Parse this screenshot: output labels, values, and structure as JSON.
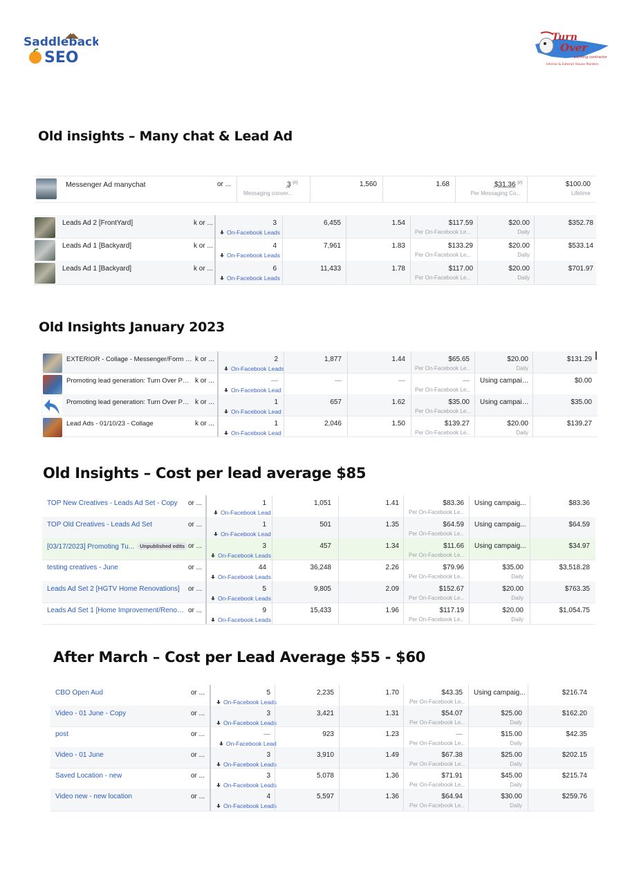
{
  "logos": {
    "left": {
      "line1": "Saddleback",
      "line2": "SEO"
    },
    "right": {
      "line1": "Turn",
      "line2": "Over",
      "line3": "painting contractor",
      "tagline": "Interior & Exterior House Painters"
    }
  },
  "headings": {
    "h1": "Old insights – Many chat & Lead Ad",
    "h2": "Old Insights January 2023",
    "h3": "Old Insights – Cost per lead average $85",
    "h4": "After March – Cost per Lead Average $55 - $60"
  },
  "table1": {
    "messenger": {
      "name": "Messenger Ad manychat",
      "delivery": "or ...",
      "results": "3",
      "results_note": "[2]",
      "results_sub": "Messaging conver...",
      "reach": "1,560",
      "frequency": "1.68",
      "cost": "$31.36",
      "cost_note": "[2]",
      "cost_sub": "Per Messaging Co...",
      "budget": "$100.00",
      "budget_sub": "Lifetime"
    },
    "rows": [
      {
        "name": "Leads Ad 2 [FrontYard]",
        "delivery": "k or ...",
        "results": "3",
        "result_type": "On-Facebook Leads",
        "reach": "6,455",
        "frequency": "1.54",
        "cost": "$117.59",
        "cost_sub": "Per On-Facebook Le...",
        "budget": "$20.00",
        "budget_sub": "Daily",
        "spent": "$352.78"
      },
      {
        "name": "Leads Ad 1 [Backyard]",
        "delivery": "k or ...",
        "results": "4",
        "result_type": "On-Facebook Leads",
        "reach": "7,961",
        "frequency": "1.83",
        "cost": "$133.29",
        "cost_sub": "Per On-Facebook Le...",
        "budget": "$20.00",
        "budget_sub": "Daily",
        "spent": "$533.14"
      },
      {
        "name": "Leads Ad 1 [Backyard]",
        "delivery": "k or ...",
        "results": "6",
        "result_type": "On-Facebook Leads",
        "reach": "11,433",
        "frequency": "1.78",
        "cost": "$117.00",
        "cost_sub": "Per On-Facebook Le...",
        "budget": "$20.00",
        "budget_sub": "Daily",
        "spent": "$701.97"
      }
    ]
  },
  "table2": {
    "rows": [
      {
        "name": "EXTERIOR - Collage - Messenger/Form - 01/...",
        "delivery": "k or ...",
        "results": "2",
        "result_type": "On-Facebook Leads",
        "reach": "1,877",
        "frequency": "1.44",
        "cost": "$65.65",
        "cost_sub": "Per On-Facebook Le...",
        "budget": "$20.00",
        "budget_sub": "Daily",
        "spent": "$131.29"
      },
      {
        "name": "Promoting lead generation: Turn Over Painti...",
        "delivery": "k or ...",
        "results": "—",
        "result_type": "On-Facebook Lead",
        "reach": "—",
        "frequency": "—",
        "cost": "—",
        "cost_sub": "Per On-Facebook Le...",
        "budget": "Using campaig...",
        "budget_sub": "",
        "spent": "$0.00"
      },
      {
        "name": "Promoting lead generation: Turn Over Painti...",
        "delivery": "k or ...",
        "results": "1",
        "result_type": "On-Facebook Lead",
        "reach": "657",
        "frequency": "1.62",
        "cost": "$35.00",
        "cost_sub": "Per On-Facebook Le...",
        "budget": "Using campaig...",
        "budget_sub": "",
        "spent": "$35.00"
      },
      {
        "name": "Lead Ads - 01/10/23 - Collage",
        "delivery": "k or ...",
        "results": "1",
        "result_type": "On-Facebook Lead",
        "reach": "2,046",
        "frequency": "1.50",
        "cost": "$139.27",
        "cost_sub": "Per On-Facebook Le...",
        "budget": "$20.00",
        "budget_sub": "Daily",
        "spent": "$139.27"
      }
    ]
  },
  "table3": {
    "rows": [
      {
        "name": "TOP New Creatives - Leads Ad Set - Copy",
        "badge": "",
        "delivery": "or ...",
        "results": "1",
        "result_type": "On-Facebook Lead",
        "reach": "1,051",
        "frequency": "1.41",
        "cost": "$83.36",
        "cost_sub": "Per On-Facebook Le...",
        "budget": "Using campaig...",
        "budget_sub": "",
        "spent": "$83.36"
      },
      {
        "name": "TOP Old Creatives - Leads Ad Set",
        "badge": "",
        "delivery": "or ...",
        "results": "1",
        "result_type": "On-Facebook Lead",
        "reach": "501",
        "frequency": "1.35",
        "cost": "$64.59",
        "cost_sub": "Per On-Facebook Le...",
        "budget": "Using campaig...",
        "budget_sub": "",
        "spent": "$64.59"
      },
      {
        "name": "[03/17/2023] Promoting Tu...",
        "badge": "Unpublished edits",
        "delivery": "or ...",
        "results": "3",
        "result_type": "On-Facebook Leads",
        "reach": "457",
        "frequency": "1.34",
        "cost": "$11.66",
        "cost_sub": "Per On-Facebook Le...",
        "budget": "Using campaig...",
        "budget_sub": "",
        "spent": "$34.97"
      },
      {
        "name": "testing creatives - June",
        "badge": "",
        "delivery": "or ...",
        "results": "44",
        "result_type": "On-Facebook Leads",
        "reach": "36,248",
        "frequency": "2.26",
        "cost": "$79.96",
        "cost_sub": "Per On-Facebook Le...",
        "budget": "$35.00",
        "budget_sub": "Daily",
        "spent": "$3,518.28"
      },
      {
        "name": "Leads Ad Set 2 [HGTV Home Renovations]",
        "badge": "",
        "delivery": "or ...",
        "results": "5",
        "result_type": "On-Facebook Leads",
        "reach": "9,805",
        "frequency": "2.09",
        "cost": "$152.67",
        "cost_sub": "Per On-Facebook Le...",
        "budget": "$20.00",
        "budget_sub": "Daily",
        "spent": "$763.35"
      },
      {
        "name": "Leads Ad Set 1 [Home Improvement/Renovat...",
        "badge": "",
        "delivery": "or ...",
        "results": "9",
        "result_type": "On-Facebook Leads",
        "reach": "15,433",
        "frequency": "1.96",
        "cost": "$117.19",
        "cost_sub": "Per On-Facebook Le...",
        "budget": "$20.00",
        "budget_sub": "Daily",
        "spent": "$1,054.75"
      }
    ]
  },
  "table4": {
    "rows": [
      {
        "name": "CBO Open Aud",
        "delivery": "or ...",
        "results": "5",
        "result_type": "On-Facebook Leads",
        "reach": "2,235",
        "frequency": "1.70",
        "cost": "$43.35",
        "cost_sub": "Per On-Facebook Le...",
        "budget": "Using campaig...",
        "budget_sub": "",
        "spent": "$216.74"
      },
      {
        "name": "Video - 01 June - Copy",
        "delivery": "or ...",
        "results": "3",
        "result_type": "On-Facebook Leads",
        "reach": "3,421",
        "frequency": "1.31",
        "cost": "$54.07",
        "cost_sub": "Per On-Facebook Le...",
        "budget": "$25.00",
        "budget_sub": "Daily",
        "spent": "$162.20"
      },
      {
        "name": "post",
        "delivery": "or ...",
        "results": "—",
        "result_type": "On-Facebook Lead",
        "reach": "923",
        "frequency": "1.23",
        "cost": "—",
        "cost_sub": "Per On-Facebook Le...",
        "budget": "$15.00",
        "budget_sub": "Daily",
        "spent": "$42.35"
      },
      {
        "name": "Video - 01 June",
        "delivery": "or ...",
        "results": "3",
        "result_type": "On-Facebook Leads",
        "reach": "3,910",
        "frequency": "1.49",
        "cost": "$67.38",
        "cost_sub": "Per On-Facebook Le...",
        "budget": "$25.00",
        "budget_sub": "Daily",
        "spent": "$202.15"
      },
      {
        "name": "Saved Location - new",
        "delivery": "or ...",
        "results": "3",
        "result_type": "On-Facebook Leads",
        "reach": "5,078",
        "frequency": "1.36",
        "cost": "$71.91",
        "cost_sub": "Per On-Facebook Le...",
        "budget": "$45.00",
        "budget_sub": "Daily",
        "spent": "$215.74"
      },
      {
        "name": "Video new - new location",
        "delivery": "or ...",
        "results": "4",
        "result_type": "On-Facebook Leads",
        "reach": "5,597",
        "frequency": "1.36",
        "cost": "$64.94",
        "cost_sub": "Per On-Facebook Le...",
        "budget": "$30.00",
        "budget_sub": "Daily",
        "spent": "$259.76"
      }
    ]
  }
}
